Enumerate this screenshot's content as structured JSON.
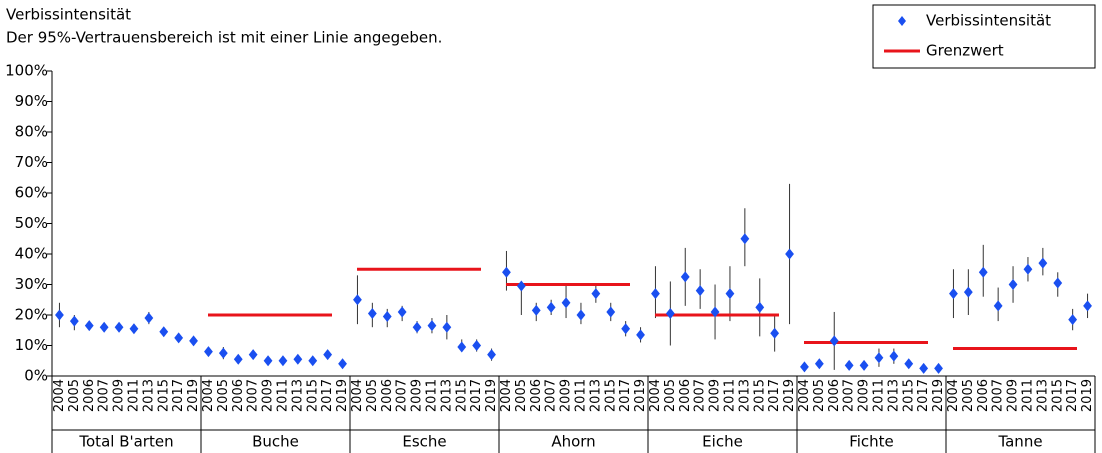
{
  "chart_data": {
    "type": "errorbar",
    "title": "Verbissintensität",
    "subtitle": "Der 95%-Vertrauensbereich ist mit einer Linie angegeben.",
    "years": [
      "2004",
      "2005",
      "2006",
      "2007",
      "2009",
      "2011",
      "2013",
      "2015",
      "2017",
      "2019"
    ],
    "ylim": [
      0,
      100
    ],
    "yticks": [
      {
        "value": 0,
        "label": "0%"
      },
      {
        "value": 10,
        "label": "10%"
      },
      {
        "value": 20,
        "label": "20%"
      },
      {
        "value": 30,
        "label": "30%"
      },
      {
        "value": 40,
        "label": "40%"
      },
      {
        "value": 50,
        "label": "50%"
      },
      {
        "value": 60,
        "label": "60%"
      },
      {
        "value": 70,
        "label": "70%"
      },
      {
        "value": 80,
        "label": "80%"
      },
      {
        "value": 90,
        "label": "90%"
      },
      {
        "value": 100,
        "label": "100%"
      }
    ],
    "legend": {
      "position": "top-right",
      "point_label": "Verbissintensität",
      "limit_label": "Grenzwert"
    },
    "point_color": "#1a4ff0",
    "limit_color": "#e8141b",
    "ci_color": "#333333",
    "groups": [
      {
        "name": "Total B'arten",
        "limit": null,
        "values": [
          20,
          18,
          16.5,
          16,
          16,
          15.5,
          19,
          14.5,
          12.5,
          11.5
        ],
        "lower": [
          16,
          15,
          15,
          15,
          14.5,
          14,
          17,
          13,
          11.5,
          10.5
        ],
        "upper": [
          24,
          20,
          18,
          17.5,
          17.5,
          17,
          21,
          16,
          13.5,
          12.5
        ]
      },
      {
        "name": "Buche",
        "limit": 20,
        "values": [
          8,
          7.5,
          5.5,
          7,
          5,
          5,
          5.5,
          5,
          7,
          4
        ],
        "lower": [
          6.5,
          5.5,
          4,
          5.5,
          4,
          4,
          4.5,
          4,
          5.5,
          3
        ],
        "upper": [
          9.5,
          9.5,
          7,
          8.5,
          6,
          6,
          6.5,
          6,
          8.5,
          5
        ]
      },
      {
        "name": "Esche",
        "limit": 35,
        "values": [
          25,
          20.5,
          19.5,
          21,
          16,
          16.5,
          16,
          9.5,
          10,
          7
        ],
        "lower": [
          17,
          16,
          16,
          18,
          14,
          14,
          12,
          8,
          8,
          5
        ],
        "upper": [
          33,
          24,
          22,
          23,
          18,
          19,
          20,
          12,
          12,
          9
        ]
      },
      {
        "name": "Ahorn",
        "limit": 30,
        "values": [
          34,
          29.5,
          21.5,
          22.5,
          24,
          20,
          27,
          21,
          15.5,
          13.5
        ],
        "lower": [
          28,
          20,
          18,
          20,
          19,
          17,
          24,
          18,
          13,
          11
        ],
        "upper": [
          41,
          31,
          24,
          25,
          30,
          24,
          30,
          24,
          18,
          16
        ]
      },
      {
        "name": "Eiche",
        "limit": 20,
        "values": [
          27,
          20.5,
          32.5,
          28,
          21,
          27,
          45,
          22.5,
          14,
          40
        ],
        "lower": [
          19,
          10,
          23,
          22,
          12,
          18,
          36,
          13,
          8,
          17
        ],
        "upper": [
          36,
          31,
          42,
          35,
          30,
          36,
          55,
          32,
          20,
          63
        ]
      },
      {
        "name": "Fichte",
        "limit": 11,
        "values": [
          3,
          4,
          11.5,
          3.5,
          3.5,
          6,
          6.5,
          4,
          2.5,
          2.5
        ],
        "lower": [
          2,
          3,
          2,
          2.5,
          2.5,
          3,
          4,
          3,
          1.5,
          1.5
        ],
        "upper": [
          4,
          5,
          21,
          4.5,
          4.5,
          9,
          9,
          5,
          3.5,
          3.5
        ]
      },
      {
        "name": "Tanne",
        "limit": 9,
        "values": [
          27,
          27.5,
          34,
          23,
          30,
          35,
          37,
          30.5,
          18.5,
          23
        ],
        "lower": [
          19,
          20,
          26,
          18,
          24,
          31,
          33,
          26,
          15,
          19
        ],
        "upper": [
          35,
          35,
          43,
          29,
          36,
          39,
          42,
          34,
          22,
          27
        ]
      }
    ]
  }
}
